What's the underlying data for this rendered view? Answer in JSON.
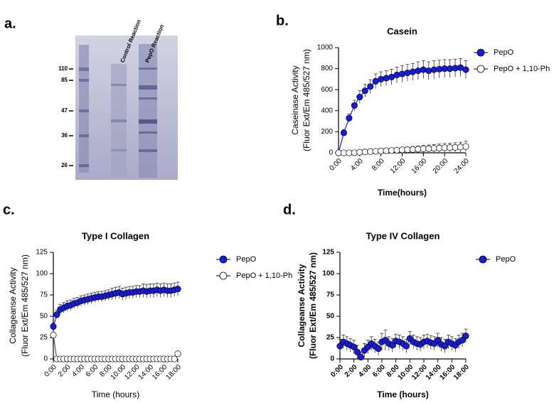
{
  "gel": {
    "panel_label": "a.",
    "lanes": [
      "Control Reaction",
      "PepO Reaction"
    ],
    "markers": [
      110,
      85,
      47,
      36,
      26
    ]
  },
  "chart_data": [
    {
      "panel_label": "b.",
      "type": "line",
      "title": "Casein",
      "y_label": [
        "Caseinase Activity",
        "(Fluor Ext/Em 485/527 nm)"
      ],
      "x_label": "Time(hours)",
      "xlim": [
        0,
        24
      ],
      "ylim": [
        0,
        1000
      ],
      "xticks": [
        {
          "value": 0,
          "label": "0:00"
        },
        {
          "value": 4,
          "label": "4:00"
        },
        {
          "value": 8,
          "label": "8:00"
        },
        {
          "value": 12,
          "label": "12:00"
        },
        {
          "value": 16,
          "label": "16:00"
        },
        {
          "value": 20,
          "label": "20:00"
        },
        {
          "value": 24,
          "label": "24:00"
        }
      ],
      "yticks": [
        0,
        200,
        400,
        600,
        800,
        1000
      ],
      "legend": "right",
      "x": [
        0,
        1,
        2,
        3,
        4,
        5,
        6,
        7,
        8,
        9,
        10,
        11,
        12,
        13,
        14,
        15,
        16,
        17,
        18,
        19,
        20,
        21,
        22,
        23,
        24
      ],
      "series": [
        {
          "name": "PepO",
          "color": "#1a1adb",
          "values": [
            0,
            190,
            330,
            450,
            530,
            590,
            630,
            680,
            700,
            710,
            720,
            740,
            750,
            760,
            770,
            780,
            790,
            780,
            790,
            795,
            800,
            800,
            805,
            810,
            790
          ],
          "errors": [
            5,
            30,
            40,
            50,
            60,
            60,
            65,
            70,
            70,
            70,
            75,
            75,
            80,
            80,
            80,
            85,
            85,
            85,
            85,
            85,
            85,
            85,
            85,
            85,
            85
          ]
        },
        {
          "name": "PepO + 1,10-Ph",
          "color": "#ffffff",
          "values": [
            0,
            0,
            0,
            0,
            5,
            8,
            12,
            15,
            18,
            20,
            22,
            25,
            28,
            30,
            32,
            35,
            38,
            40,
            42,
            45,
            48,
            50,
            52,
            55,
            60
          ],
          "errors": [
            2,
            3,
            3,
            5,
            8,
            10,
            12,
            14,
            15,
            18,
            20,
            22,
            24,
            26,
            28,
            30,
            32,
            34,
            36,
            38,
            40,
            42,
            44,
            46,
            50
          ]
        }
      ]
    },
    {
      "panel_label": "c.",
      "type": "line",
      "title": "Type I Collagen",
      "y_label": [
        "Collageanse Activity",
        "(Fluor Ext/Em 485/527 nm)"
      ],
      "x_label": "Time (hours)",
      "xlim": [
        0,
        18
      ],
      "ylim": [
        0,
        125
      ],
      "xticks": [
        {
          "value": 0,
          "label": "0:00"
        },
        {
          "value": 2,
          "label": "2:00"
        },
        {
          "value": 4,
          "label": "4:00"
        },
        {
          "value": 6,
          "label": "6:00"
        },
        {
          "value": 8,
          "label": "8:00"
        },
        {
          "value": 10,
          "label": "10:00"
        },
        {
          "value": 12,
          "label": "12:00"
        },
        {
          "value": 14,
          "label": "14:00"
        },
        {
          "value": 16,
          "label": "16:00"
        },
        {
          "value": 18,
          "label": "18:00"
        }
      ],
      "yticks": [
        0,
        25,
        50,
        75,
        100,
        125
      ],
      "legend": "right",
      "x": [
        0,
        0.5,
        1,
        1.5,
        2,
        2.5,
        3,
        3.5,
        4,
        4.5,
        5,
        5.5,
        6,
        6.5,
        7,
        7.5,
        8,
        8.5,
        9,
        9.5,
        10,
        10.5,
        11,
        11.5,
        12,
        12.5,
        13,
        13.5,
        14,
        14.5,
        15,
        15.5,
        16,
        16.5,
        17,
        17.5,
        18
      ],
      "series": [
        {
          "name": "PepO",
          "color": "#1a1adb",
          "values": [
            38,
            52,
            58,
            60,
            62,
            63,
            65,
            66,
            68,
            69,
            70,
            71,
            72,
            73,
            73,
            74,
            75,
            76,
            77,
            78,
            76,
            77,
            78,
            78,
            79,
            79,
            80,
            79,
            80,
            80,
            81,
            80,
            81,
            80,
            80,
            81,
            82
          ],
          "errors": [
            4,
            5,
            6,
            6,
            6,
            6,
            6,
            6,
            6,
            6,
            6,
            6,
            6,
            6,
            6,
            6,
            6,
            7,
            7,
            7,
            7,
            7,
            7,
            7,
            7,
            7,
            8,
            8,
            8,
            8,
            8,
            8,
            8,
            8,
            8,
            8,
            8
          ]
        },
        {
          "name": "PepO + 1,10-Ph",
          "color": "#ffffff",
          "values": [
            28,
            0,
            0,
            0,
            0,
            0,
            0,
            0,
            0,
            0,
            0,
            0,
            0,
            0,
            0,
            0,
            0,
            0,
            0,
            0,
            0,
            0,
            0,
            0,
            0,
            0,
            0,
            0,
            0,
            0,
            0,
            0,
            0,
            0,
            0,
            0,
            6
          ],
          "errors": [
            3,
            1,
            1,
            1,
            1,
            1,
            1,
            1,
            1,
            1,
            1,
            1,
            1,
            1,
            1,
            1,
            1,
            1,
            1,
            1,
            1,
            1,
            1,
            1,
            1,
            1,
            1,
            1,
            1,
            1,
            1,
            1,
            1,
            1,
            1,
            1,
            2
          ]
        }
      ]
    },
    {
      "panel_label": "d.",
      "type": "line",
      "title": "Type IV Collagen",
      "y_label": [
        "Collageanse Activity",
        "(Fluor Ext/Em 485/527 nm)"
      ],
      "x_label": "Time (hours)",
      "xlim": [
        0,
        18
      ],
      "ylim": [
        0,
        125
      ],
      "xticks": [
        {
          "value": 0,
          "label": "0:00"
        },
        {
          "value": 2,
          "label": "2:00"
        },
        {
          "value": 4,
          "label": "4:00"
        },
        {
          "value": 6,
          "label": "6:00"
        },
        {
          "value": 8,
          "label": "8:00"
        },
        {
          "value": 10,
          "label": "10:00"
        },
        {
          "value": 12,
          "label": "12:00"
        },
        {
          "value": 14,
          "label": "14:00"
        },
        {
          "value": 16,
          "label": "16:00"
        },
        {
          "value": 18,
          "label": "18:00"
        }
      ],
      "yticks": [
        0,
        25,
        50,
        75,
        100,
        125
      ],
      "legend": "right",
      "x": [
        0,
        0.5,
        1,
        1.5,
        2,
        2.5,
        3,
        3.5,
        4,
        4.5,
        5,
        5.5,
        6,
        6.5,
        7,
        7.5,
        8,
        8.5,
        9,
        9.5,
        10,
        10.5,
        11,
        11.5,
        12,
        12.5,
        13,
        13.5,
        14,
        14.5,
        15,
        15.5,
        16,
        16.5,
        17,
        17.5,
        18
      ],
      "series": [
        {
          "name": "PepO",
          "color": "#1a1adb",
          "values": [
            15,
            20,
            18,
            16,
            14,
            8,
            2,
            10,
            14,
            18,
            15,
            12,
            20,
            22,
            18,
            16,
            21,
            20,
            18,
            15,
            24,
            20,
            18,
            17,
            20,
            21,
            19,
            18,
            22,
            17,
            15,
            20,
            18,
            16,
            20,
            22,
            27
          ],
          "errors": [
            8,
            8,
            8,
            8,
            8,
            8,
            6,
            8,
            8,
            8,
            8,
            8,
            10,
            12,
            8,
            8,
            8,
            8,
            8,
            8,
            8,
            8,
            8,
            8,
            8,
            8,
            8,
            8,
            8,
            8,
            8,
            8,
            8,
            8,
            8,
            8,
            8
          ]
        }
      ]
    }
  ]
}
